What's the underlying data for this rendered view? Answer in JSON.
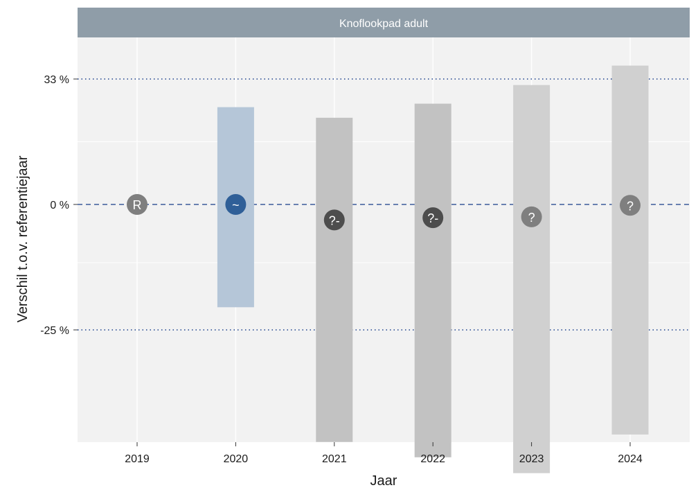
{
  "chart_data": {
    "type": "interval",
    "facet_title": "Knoflookpad adult",
    "xlabel": "Jaar",
    "ylabel": "Verschil t.o.v. referentiejaar",
    "categories": [
      "2019",
      "2020",
      "2021",
      "2022",
      "2023",
      "2024"
    ],
    "y_tick_labels": [
      "33 %",
      "0 %",
      "-25 %"
    ],
    "reference_lines": [
      {
        "label": "33 %",
        "style": "dotted"
      },
      {
        "label": "0 %",
        "style": "dashed"
      },
      {
        "label": "-25 %",
        "style": "dotted"
      }
    ],
    "points": [
      {
        "year": "2019",
        "estimate": 0.0,
        "lower": null,
        "upper": null,
        "symbol": "R",
        "marker_color": "#7f7f7f",
        "band_color": null
      },
      {
        "year": "2020",
        "estimate": 0.0,
        "lower": -0.21,
        "upper": 0.25,
        "symbol": "~",
        "marker_color": "#2f5f98",
        "band_color": "#b5c6d8"
      },
      {
        "year": "2021",
        "estimate": -0.035,
        "lower": -0.42,
        "upper": 0.22,
        "symbol": "?-",
        "marker_color": "#4d4d4d",
        "band_color": "#c2c2c2"
      },
      {
        "year": "2022",
        "estimate": -0.03,
        "lower": -0.44,
        "upper": 0.26,
        "symbol": "?-",
        "marker_color": "#4d4d4d",
        "band_color": "#c2c2c2"
      },
      {
        "year": "2023",
        "estimate": -0.028,
        "lower": -0.46,
        "upper": 0.315,
        "symbol": "?",
        "marker_color": "#7f7f7f",
        "band_color": "#d0d0d0"
      },
      {
        "year": "2024",
        "estimate": -0.002,
        "lower": -0.41,
        "upper": 0.375,
        "symbol": "?",
        "marker_color": "#7f7f7f",
        "band_color": "#d0d0d0"
      }
    ],
    "ylim": [
      -0.48,
      0.42
    ],
    "grid": true,
    "panel_color": "#f2f2f2",
    "strip_color": "#8f9da8",
    "reference_line_color": "#3a5a9a"
  }
}
